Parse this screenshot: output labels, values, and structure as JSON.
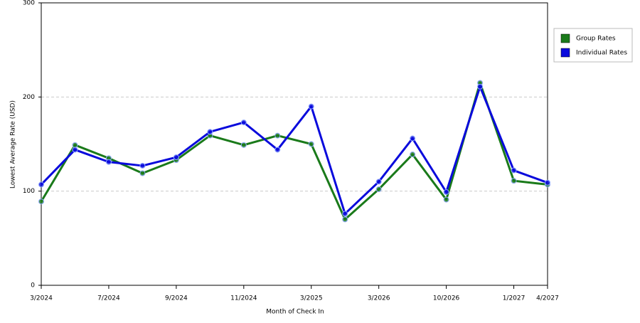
{
  "chart_data": {
    "type": "line",
    "x_label": "Month of Check In",
    "y_label": "Lowest Average Rate (USD)",
    "categories": [
      "3/2024",
      null,
      "7/2024",
      null,
      "9/2024",
      null,
      "11/2024",
      null,
      "3/2025",
      null,
      "3/2026",
      null,
      "10/2026",
      null,
      "1/2027",
      "4/2027"
    ],
    "series": [
      {
        "name": "Group Rates",
        "color": "#1a7a1a",
        "values": [
          89,
          149,
          135,
          119,
          133,
          159,
          149,
          159,
          150,
          70,
          102,
          139,
          91,
          215,
          111,
          107
        ]
      },
      {
        "name": "Individual Rates",
        "color": "#0a0adc",
        "values": [
          107,
          144,
          131,
          127,
          136,
          163,
          173,
          144,
          190,
          76,
          110,
          156,
          99,
          211,
          122,
          109
        ]
      }
    ],
    "ylim": [
      0,
      300
    ],
    "yticks": [
      0,
      100,
      200,
      300
    ],
    "grid": true,
    "legend": "right"
  }
}
